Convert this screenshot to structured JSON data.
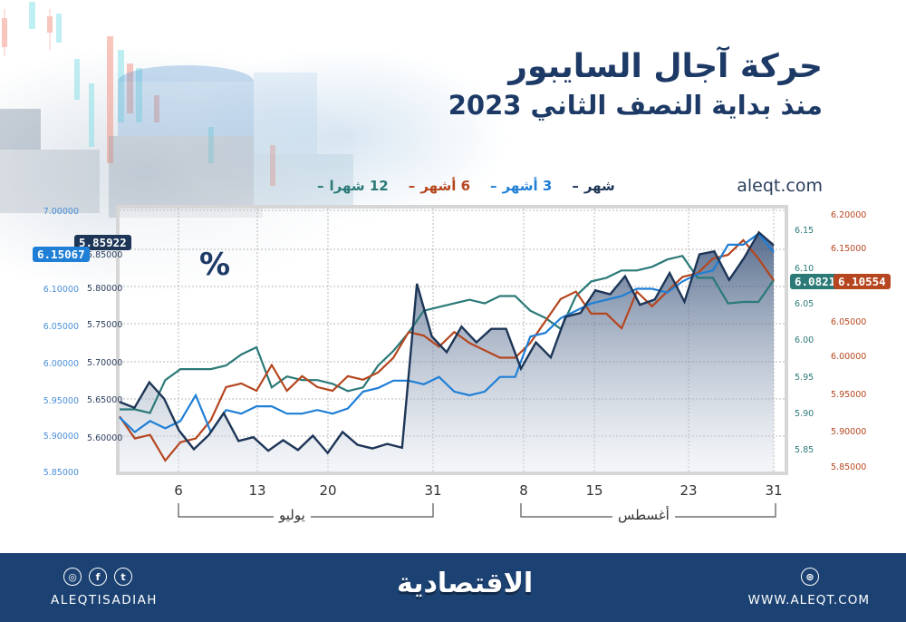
{
  "header": {
    "title": "حركة آجال السايبور",
    "subtitle": "منذ بداية النصف الثاني 2023",
    "site": "aleqt.com"
  },
  "legend": [
    {
      "label": "شهر",
      "color": "#1d3557"
    },
    {
      "label": "3 أشهر",
      "color": "#1f7fd6"
    },
    {
      "label": "6 أشهر",
      "color": "#b5461f"
    },
    {
      "label": "12 شهرا",
      "color": "#2b7a78"
    }
  ],
  "unit_label": "%",
  "last_value_tags": {
    "one_month": "5.85922",
    "three_months": "6.15067",
    "six_months": "6.10554",
    "twelve_months": "6.0821"
  },
  "axes": {
    "three_months_left_outer": [
      "7.00000",
      "6.15000",
      "6.10000",
      "6.05000",
      "6.00000",
      "5.95000",
      "5.90000",
      "5.85000"
    ],
    "one_month_left_inner": [
      "5.85000",
      "5.80000",
      "5.75000",
      "5.70000",
      "5.65000",
      "5.60000"
    ],
    "twelve_months_right_inner": [
      "6.15",
      "6.10",
      "6.05",
      "6.00",
      "5.95",
      "5.90",
      "5.85"
    ],
    "six_months_right_outer": [
      "6.20000",
      "6.15000",
      "6.05000",
      "6.00000",
      "5.95000",
      "5.90000",
      "5.85000"
    ]
  },
  "x_ticks": [
    "6",
    "13",
    "20",
    "31",
    "8",
    "15",
    "23",
    "31"
  ],
  "months": {
    "july": "يوليو",
    "august": "أغسطس"
  },
  "footer": {
    "handle": "ALEQTISADIAH",
    "logo": "الاقتصادية",
    "website": "WWW.ALEQT.COM",
    "icons": [
      "instagram-icon",
      "facebook-icon",
      "twitter-icon",
      "dribbble-globe-icon"
    ]
  },
  "chart_data": {
    "type": "line",
    "title": "حركة آجال السايبور — منذ بداية النصف الثاني 2023",
    "ylabel": "%",
    "xlabel": "",
    "x_tick_labels": [
      "6",
      "13",
      "20",
      "31",
      "8",
      "15",
      "23",
      "31"
    ],
    "x_groups": [
      {
        "label": "يوليو",
        "from": "6",
        "to": "31"
      },
      {
        "label": "أغسطس",
        "from": "8",
        "to": "31"
      }
    ],
    "grid": true,
    "legend_position": "top",
    "series": [
      {
        "name": "شهر",
        "axis": "left-inner",
        "ylim": [
          5.58,
          7.0
        ],
        "last": 5.85922,
        "values": [
          5.651,
          5.643,
          5.677,
          5.655,
          5.613,
          5.588,
          5.607,
          5.636,
          5.599,
          5.604,
          5.586,
          5.6,
          5.587,
          5.606,
          5.583,
          5.611,
          5.594,
          5.589,
          5.595,
          5.59,
          5.808,
          5.738,
          5.717,
          5.751,
          5.73,
          5.748,
          5.748,
          5.695,
          5.73,
          5.71,
          5.764,
          5.769,
          5.799,
          5.794,
          5.818,
          5.78,
          5.787,
          5.822,
          5.784,
          5.847,
          5.851,
          5.813,
          5.842,
          5.876,
          5.859
        ]
      },
      {
        "name": "3 أشهر",
        "axis": "left-outer",
        "last": 6.15067,
        "values": [
          5.925,
          5.905,
          5.92,
          5.91,
          5.92,
          5.955,
          5.905,
          5.935,
          5.93,
          5.94,
          5.94,
          5.93,
          5.93,
          5.935,
          5.93,
          5.937,
          5.96,
          5.965,
          5.975,
          5.975,
          5.97,
          5.98,
          5.96,
          5.955,
          5.96,
          5.98,
          5.98,
          6.035,
          6.04,
          6.06,
          6.07,
          6.08,
          6.085,
          6.09,
          6.1,
          6.1,
          6.095,
          6.11,
          6.12,
          6.125,
          6.16,
          6.16,
          6.175,
          6.15
        ]
      },
      {
        "name": "6 أشهر",
        "axis": "right-outer",
        "last": 6.10554,
        "values": [
          5.92,
          5.89,
          5.895,
          5.86,
          5.885,
          5.89,
          5.915,
          5.96,
          5.965,
          5.955,
          5.99,
          5.955,
          5.975,
          5.96,
          5.955,
          5.975,
          5.97,
          5.98,
          6.0,
          6.035,
          6.03,
          6.015,
          6.035,
          6.02,
          6.01,
          6.0,
          6.0,
          6.02,
          6.05,
          6.08,
          6.09,
          6.06,
          6.06,
          6.04,
          6.09,
          6.07,
          6.09,
          6.11,
          6.115,
          6.135,
          6.14,
          6.16,
          6.135,
          6.105
        ]
      },
      {
        "name": "12 شهرا",
        "axis": "right-inner",
        "last": 6.0821,
        "values": [
          5.905,
          5.905,
          5.9,
          5.945,
          5.96,
          5.96,
          5.96,
          5.965,
          5.98,
          5.99,
          5.935,
          5.95,
          5.945,
          5.945,
          5.94,
          5.93,
          5.935,
          5.965,
          5.985,
          6.01,
          6.04,
          6.045,
          6.05,
          6.055,
          6.05,
          6.06,
          6.06,
          6.04,
          6.03,
          6.015,
          6.06,
          6.08,
          6.085,
          6.095,
          6.095,
          6.1,
          6.11,
          6.115,
          6.085,
          6.085,
          6.05,
          6.052,
          6.052,
          6.082
        ]
      }
    ]
  }
}
